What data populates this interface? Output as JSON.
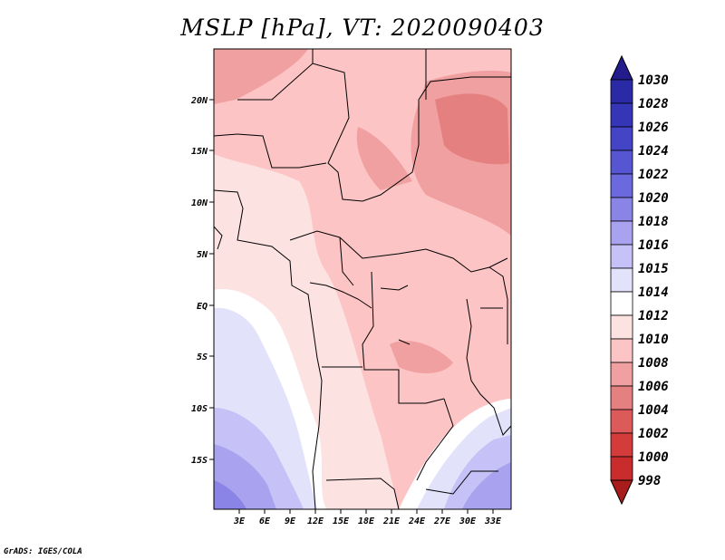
{
  "title": "MSLP [hPa], VT: 2020090403",
  "credit": "GrADS: IGES/COLA",
  "map": {
    "lon_range": [
      0,
      35
    ],
    "lat_range": [
      -20,
      24
    ],
    "lon_ticks": [
      "3E",
      "6E",
      "9E",
      "12E",
      "15E",
      "18E",
      "21E",
      "24E",
      "27E",
      "30E",
      "33E"
    ],
    "lat_ticks": [
      "20N",
      "15N",
      "10N",
      "5N",
      "EQ",
      "5S",
      "10S",
      "15S"
    ]
  },
  "colorbar": {
    "levels": [
      "1030",
      "1028",
      "1026",
      "1024",
      "1022",
      "1020",
      "1018",
      "1016",
      "1015",
      "1014",
      "1012",
      "1010",
      "1008",
      "1006",
      "1004",
      "1002",
      "1000",
      "998"
    ],
    "colors": [
      "#221c8c",
      "#2a2aa6",
      "#3535b8",
      "#4444c6",
      "#5656d2",
      "#6b69de",
      "#8a84e6",
      "#a9a2ee",
      "#c6c1f6",
      "#e2e2fa",
      "#ffffff",
      "#fde2e2",
      "#fcc4c4",
      "#f0a0a0",
      "#e48080",
      "#dd5a5a",
      "#d43c3c",
      "#c82c2c",
      "#a81c1c"
    ]
  }
}
